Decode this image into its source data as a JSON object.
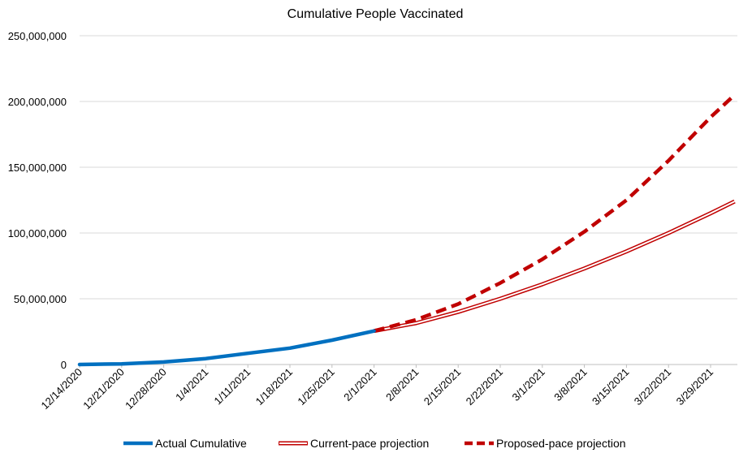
{
  "chart_data": {
    "type": "line",
    "title": "Cumulative People Vaccinated",
    "xlabel": "",
    "ylabel": "",
    "ylim": [
      0,
      250000000
    ],
    "y_ticks": [
      0,
      50000000,
      100000000,
      150000000,
      200000000,
      250000000
    ],
    "y_tick_labels": [
      "0",
      "50,000,000",
      "100,000,000",
      "150,000,000",
      "200,000,000",
      "250,000,000"
    ],
    "x_tick_labels": [
      "12/14/2020",
      "12/21/2020",
      "12/28/2020",
      "1/4/2021",
      "1/11/2021",
      "1/18/2021",
      "1/25/2021",
      "2/1/2021",
      "2/8/2021",
      "2/15/2021",
      "2/22/2021",
      "3/1/2021",
      "3/8/2021",
      "3/15/2021",
      "3/22/2021",
      "3/29/2021"
    ],
    "xlim": [
      "12/14/2020",
      "4/2/2021"
    ],
    "grid": "horizontal",
    "legend_position": "bottom",
    "series": [
      {
        "name": "Actual Cumulative",
        "color": "#0070C0",
        "style": "solid-thick",
        "x": [
          "12/14/2020",
          "12/21/2020",
          "12/28/2020",
          "1/4/2021",
          "1/11/2021",
          "1/18/2021",
          "1/25/2021",
          "2/1/2021"
        ],
        "y": [
          0,
          500000,
          1900000,
          4500000,
          8500000,
          12500000,
          18500000,
          25500000
        ]
      },
      {
        "name": "Current-pace projection",
        "color": "#C00000",
        "style": "double-line",
        "x": [
          "2/1/2021",
          "2/8/2021",
          "2/15/2021",
          "2/22/2021",
          "3/1/2021",
          "3/8/2021",
          "3/15/2021",
          "3/22/2021",
          "3/29/2021",
          "4/2/2021"
        ],
        "y": [
          25500000,
          31500000,
          40000000,
          50000000,
          61000000,
          73000000,
          86000000,
          100000000,
          115000000,
          124000000
        ]
      },
      {
        "name": "Proposed-pace projection",
        "color": "#C00000",
        "style": "dashed-thick",
        "x": [
          "2/1/2021",
          "2/8/2021",
          "2/15/2021",
          "2/22/2021",
          "3/1/2021",
          "3/8/2021",
          "3/15/2021",
          "3/22/2021",
          "3/29/2021",
          "4/2/2021"
        ],
        "y": [
          25500000,
          34000000,
          46000000,
          62000000,
          80000000,
          101000000,
          125000000,
          155000000,
          188000000,
          205000000
        ]
      }
    ]
  }
}
